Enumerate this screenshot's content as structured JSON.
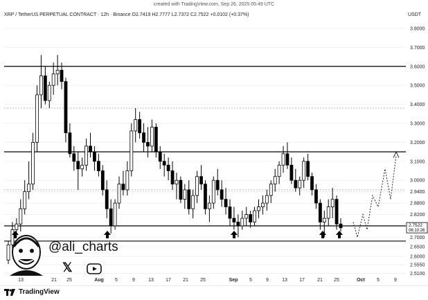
{
  "credit": "created with TradingView.com, Sep 26, 2025 05:49 UTC",
  "header": {
    "symbol": "XRP / TetherUS PERPETUAL CONTRACT · 12h · Binance",
    "ohlc": "O2.7419  H2.7777  L2.7372  C2.7522  +0.0102 (+0.37%)"
  },
  "currency": "USDT",
  "price_badge": {
    "price": "2.7522",
    "countdown": "06:10:26"
  },
  "watermark": {
    "handle": "@ali_charts"
  },
  "brand": {
    "name": "TradingView"
  },
  "colors": {
    "candle": "#000000",
    "line": "#000000",
    "dotted": "#b9b9b9"
  },
  "icons": [
    "x-logo-icon",
    "youtube-icon",
    "tradingview-logo-icon",
    "arrow-up-icon",
    "avatar-cartoon-icon"
  ],
  "chart_data": {
    "type": "candlestick",
    "y_ticks": [
      "3.8000",
      "3.7000",
      "3.6000",
      "3.5000",
      "3.4000",
      "3.3000",
      "3.2000",
      "3.1000",
      "3.0000",
      "2.9400",
      "2.8800",
      "2.8200",
      "2.7000",
      "2.6500",
      "2.6000",
      "2.5550",
      "2.5100"
    ],
    "x_ticks": [
      "13",
      "21",
      "25",
      "Aug",
      "5",
      "9",
      "13",
      "17",
      "21",
      "25",
      "Sep",
      "5",
      "9",
      "13",
      "17",
      "21",
      "25",
      "Oct",
      "5",
      "9"
    ],
    "horizontal_levels": [
      3.6,
      3.15,
      2.76,
      2.68
    ],
    "dotted_levels": [
      3.38,
      2.95
    ],
    "arrows_at": [
      "Jul 9",
      "Aug 1",
      "Sep 1",
      "Sep 22",
      "Sep 25"
    ],
    "ylim": [
      2.49,
      3.84
    ],
    "ohlc": [
      [
        2.58,
        2.68,
        2.56,
        2.66
      ],
      [
        2.66,
        2.78,
        2.62,
        2.74
      ],
      [
        2.74,
        2.8,
        2.7,
        2.77
      ],
      [
        2.77,
        2.9,
        2.73,
        2.85
      ],
      [
        2.85,
        3.0,
        2.82,
        2.94
      ],
      [
        2.94,
        3.1,
        2.9,
        2.98
      ],
      [
        2.98,
        3.25,
        2.95,
        3.2
      ],
      [
        3.2,
        3.5,
        3.15,
        3.45
      ],
      [
        3.45,
        3.66,
        3.38,
        3.55
      ],
      [
        3.55,
        3.6,
        3.4,
        3.42
      ],
      [
        3.42,
        3.52,
        3.38,
        3.5
      ],
      [
        3.5,
        3.62,
        3.45,
        3.56
      ],
      [
        3.56,
        3.66,
        3.5,
        3.58
      ],
      [
        3.58,
        3.62,
        3.48,
        3.52
      ],
      [
        3.52,
        3.54,
        3.2,
        3.25
      ],
      [
        3.25,
        3.3,
        3.12,
        3.14
      ],
      [
        3.14,
        3.18,
        3.05,
        3.1
      ],
      [
        3.1,
        3.15,
        2.95,
        3.06
      ],
      [
        3.06,
        3.12,
        3.02,
        3.08
      ],
      [
        3.08,
        3.22,
        3.05,
        3.18
      ],
      [
        3.18,
        3.25,
        3.12,
        3.15
      ],
      [
        3.15,
        3.18,
        3.05,
        3.1
      ],
      [
        3.1,
        3.14,
        3.02,
        3.05
      ],
      [
        3.05,
        3.08,
        2.92,
        2.95
      ],
      [
        2.95,
        3.0,
        2.8,
        2.85
      ],
      [
        2.85,
        2.9,
        2.72,
        2.76
      ],
      [
        2.76,
        2.9,
        2.74,
        2.88
      ],
      [
        2.88,
        3.02,
        2.85,
        2.98
      ],
      [
        2.98,
        3.05,
        2.92,
        2.95
      ],
      [
        2.95,
        3.1,
        2.92,
        3.05
      ],
      [
        3.05,
        3.3,
        3.02,
        3.26
      ],
      [
        3.26,
        3.38,
        3.2,
        3.32
      ],
      [
        3.32,
        3.36,
        3.22,
        3.25
      ],
      [
        3.25,
        3.3,
        3.15,
        3.2
      ],
      [
        3.2,
        3.28,
        3.12,
        3.18
      ],
      [
        3.18,
        3.32,
        3.15,
        3.28
      ],
      [
        3.28,
        3.3,
        3.12,
        3.15
      ],
      [
        3.15,
        3.18,
        3.06,
        3.1
      ],
      [
        3.1,
        3.14,
        3.02,
        3.08
      ],
      [
        3.08,
        3.12,
        3.0,
        3.05
      ],
      [
        3.05,
        3.1,
        2.95,
        2.98
      ],
      [
        2.98,
        3.04,
        2.9,
        3.0
      ],
      [
        3.0,
        3.02,
        2.88,
        2.9
      ],
      [
        2.9,
        2.98,
        2.85,
        2.95
      ],
      [
        2.95,
        3.0,
        2.82,
        2.85
      ],
      [
        2.85,
        2.95,
        2.8,
        2.92
      ],
      [
        2.92,
        3.05,
        2.88,
        3.02
      ],
      [
        3.02,
        3.08,
        2.95,
        2.98
      ],
      [
        2.98,
        3.0,
        2.82,
        2.85
      ],
      [
        2.85,
        2.92,
        2.78,
        2.88
      ],
      [
        2.88,
        3.02,
        2.85,
        3.0
      ],
      [
        3.0,
        3.06,
        2.92,
        2.95
      ],
      [
        2.95,
        3.0,
        2.86,
        2.9
      ],
      [
        2.9,
        2.96,
        2.82,
        2.86
      ],
      [
        2.86,
        2.9,
        2.76,
        2.8
      ],
      [
        2.8,
        2.86,
        2.74,
        2.78
      ],
      [
        2.78,
        2.82,
        2.7,
        2.76
      ],
      [
        2.76,
        2.84,
        2.74,
        2.8
      ],
      [
        2.8,
        2.86,
        2.76,
        2.82
      ],
      [
        2.82,
        2.84,
        2.75,
        2.78
      ],
      [
        2.78,
        2.86,
        2.76,
        2.84
      ],
      [
        2.84,
        2.9,
        2.8,
        2.86
      ],
      [
        2.86,
        2.92,
        2.82,
        2.88
      ],
      [
        2.88,
        2.95,
        2.84,
        2.92
      ],
      [
        2.92,
        3.0,
        2.88,
        2.98
      ],
      [
        2.98,
        3.06,
        2.94,
        3.02
      ],
      [
        3.02,
        3.1,
        2.98,
        3.08
      ],
      [
        3.08,
        3.18,
        3.04,
        3.14
      ],
      [
        3.14,
        3.2,
        3.06,
        3.08
      ],
      [
        3.08,
        3.12,
        2.98,
        3.0
      ],
      [
        3.0,
        3.06,
        2.94,
        2.96
      ],
      [
        2.96,
        3.02,
        2.92,
        3.0
      ],
      [
        3.0,
        3.12,
        2.96,
        3.1
      ],
      [
        3.1,
        3.14,
        3.0,
        3.02
      ],
      [
        3.02,
        3.04,
        2.92,
        2.95
      ],
      [
        2.95,
        2.98,
        2.85,
        2.88
      ],
      [
        2.88,
        2.9,
        2.74,
        2.78
      ],
      [
        2.78,
        2.84,
        2.7,
        2.8
      ],
      [
        2.8,
        2.9,
        2.76,
        2.86
      ],
      [
        2.86,
        2.96,
        2.8,
        2.9
      ],
      [
        2.9,
        2.92,
        2.74,
        2.77
      ],
      [
        2.77,
        2.8,
        2.73,
        2.75
      ]
    ]
  }
}
